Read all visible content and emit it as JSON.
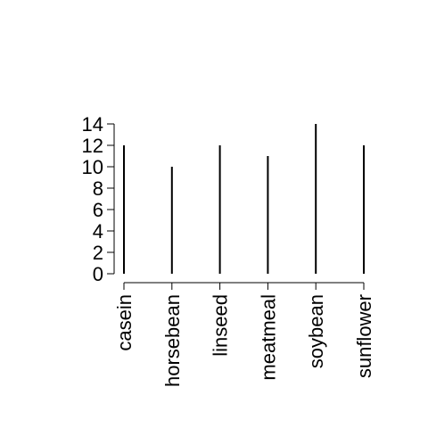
{
  "chart_data": {
    "type": "bar",
    "style": "needle",
    "title": "",
    "xlabel": "",
    "ylabel": "",
    "categories": [
      "casein",
      "horsebean",
      "linseed",
      "meatmeal",
      "soybean",
      "sunflower"
    ],
    "values": [
      12,
      10,
      12,
      11,
      14,
      12
    ],
    "ylim": [
      0,
      14
    ],
    "yticks": [
      0,
      2,
      4,
      6,
      8,
      10,
      12,
      14
    ],
    "grid": false,
    "legend": "none",
    "colors": {
      "bar": "#000000",
      "axis": "#000000",
      "ylabel": "#1f3b5a"
    }
  }
}
